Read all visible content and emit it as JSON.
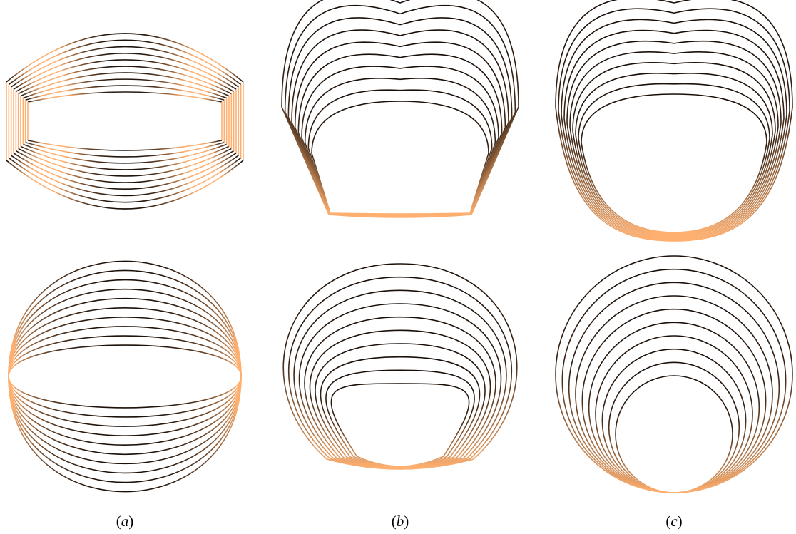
{
  "figure": {
    "panels": [
      {
        "id": "a",
        "caption_open": "(",
        "caption_letter": "a",
        "caption_close": ")",
        "top_family": "inner-lens-flat-sides",
        "bottom_family": "lens-through-endpoints"
      },
      {
        "id": "b",
        "caption_open": "(",
        "caption_letter": "b",
        "caption_close": ")",
        "top_family": "flat-bottom-open-top",
        "bottom_family": "flat-bottom-closed"
      },
      {
        "id": "c",
        "caption_open": "(",
        "caption_letter": "c",
        "caption_close": ")",
        "top_family": "rounded-bottom-open-top",
        "bottom_family": "tangent-circles"
      }
    ],
    "colors": {
      "dark": "#1a0f08",
      "light": "#ffb070"
    },
    "curves_per_family": 10
  }
}
